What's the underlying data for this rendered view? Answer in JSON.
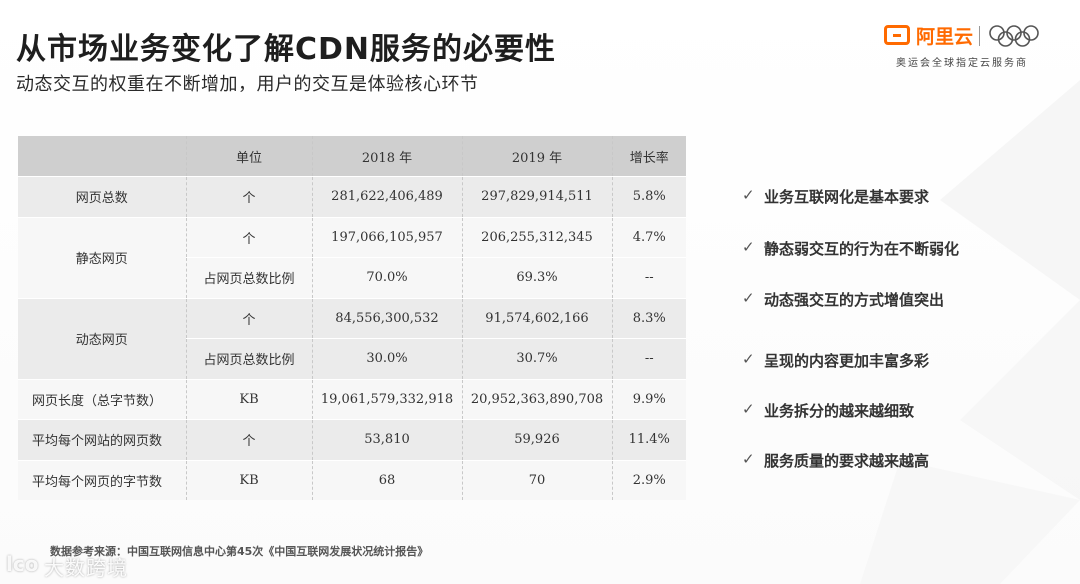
{
  "header": {
    "title": "从市场业务变化了解CDN服务的必要性",
    "subtitle": "动态交互的权重在不断增加，用户的交互是体验核心环节"
  },
  "logo": {
    "brand": "阿里云",
    "tagline": "奥运会全球指定云服务商",
    "accent_color": "#ff6a00"
  },
  "table": {
    "headers": [
      "",
      "单位",
      "2018 年",
      "2019 年",
      "增长率"
    ],
    "rows": [
      {
        "label": "网页总数",
        "unit": "个",
        "y2018": "281,622,406,489",
        "y2019": "297,829,914,511",
        "growth": "5.8%"
      },
      {
        "label": "静态网页",
        "unit": "个",
        "y2018": "197,066,105,957",
        "y2019": "206,255,312,345",
        "growth": "4.7%"
      },
      {
        "label": "",
        "unit": "占网页总数比例",
        "y2018": "70.0%",
        "y2019": "69.3%",
        "growth": "--"
      },
      {
        "label": "动态网页",
        "unit": "个",
        "y2018": "84,556,300,532",
        "y2019": "91,574,602,166",
        "growth": "8.3%"
      },
      {
        "label": "",
        "unit": "占网页总数比例",
        "y2018": "30.0%",
        "y2019": "30.7%",
        "growth": "--"
      },
      {
        "label": "网页长度（总字节数）",
        "unit": "KB",
        "y2018": "19,061,579,332,918",
        "y2019": "20,952,363,890,708",
        "growth": "9.9%"
      },
      {
        "label": "平均每个网站的网页数",
        "unit": "个",
        "y2018": "53,810",
        "y2019": "59,926",
        "growth": "11.4%"
      },
      {
        "label": "平均每个网页的字节数",
        "unit": "KB",
        "y2018": "68",
        "y2019": "70",
        "growth": "2.9%"
      }
    ]
  },
  "bullets": {
    "check_icon": "✓",
    "items": [
      "业务互联网化是基本要求",
      "静态弱交互的行为在不断弱化",
      "动态强交互的方式增值突出",
      "呈现的内容更加丰富多彩",
      "业务拆分的越来越细致",
      "服务质量的要求越来越高"
    ]
  },
  "source": "数据参考来源：中国互联网信息中心第45次《中国互联网发展状况统计报告》",
  "watermark": {
    "icon_text": "lco",
    "text": "大数跨境"
  }
}
